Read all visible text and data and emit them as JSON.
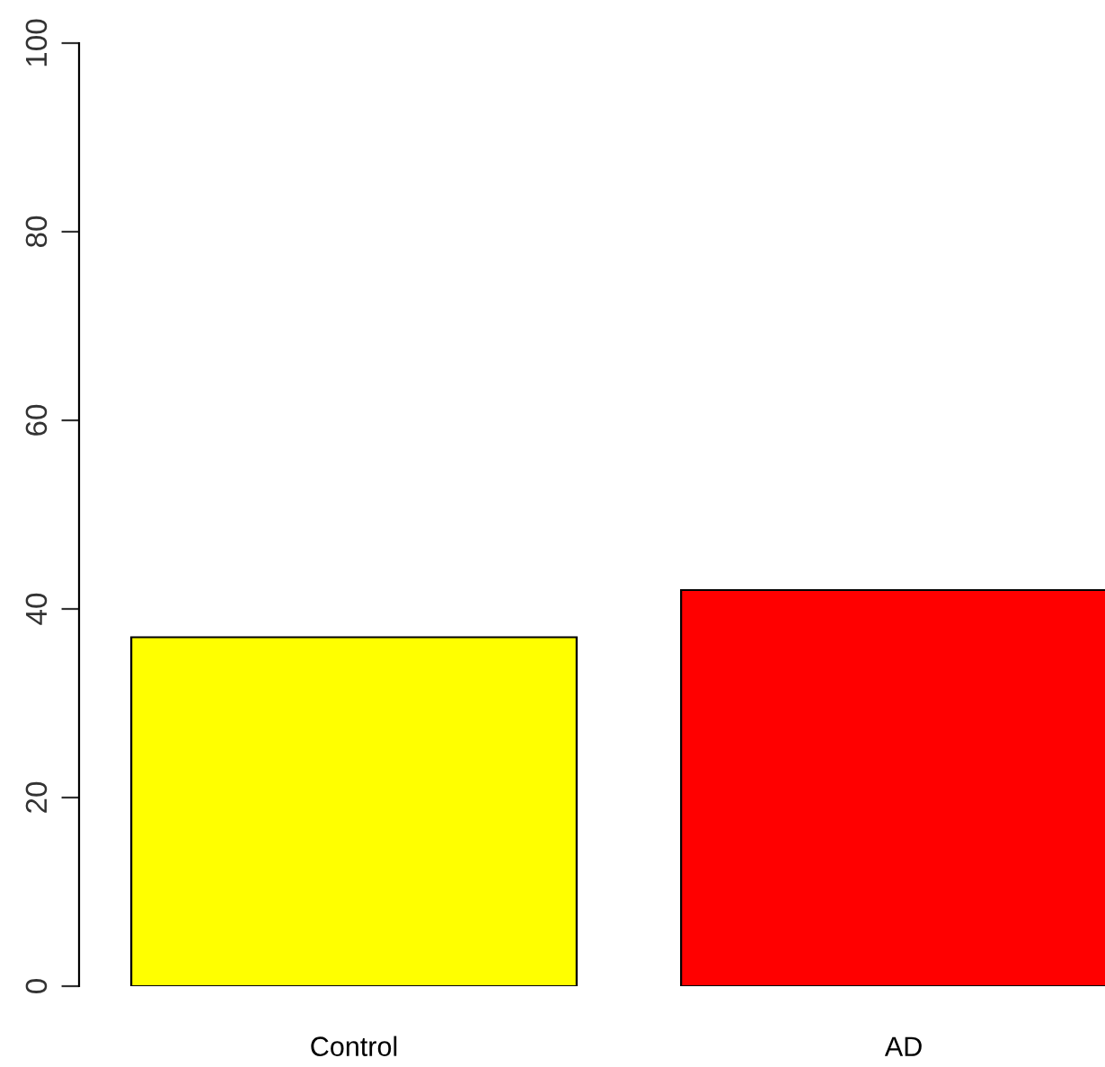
{
  "chart_data": {
    "type": "bar",
    "categories": [
      "Control",
      "AD"
    ],
    "values": [
      37,
      42
    ],
    "colors": [
      "#ffff00",
      "#ff0000"
    ],
    "ylim": [
      0,
      100
    ],
    "yticks": [
      0,
      20,
      40,
      60,
      80,
      100
    ],
    "grid": false,
    "legend": false
  }
}
